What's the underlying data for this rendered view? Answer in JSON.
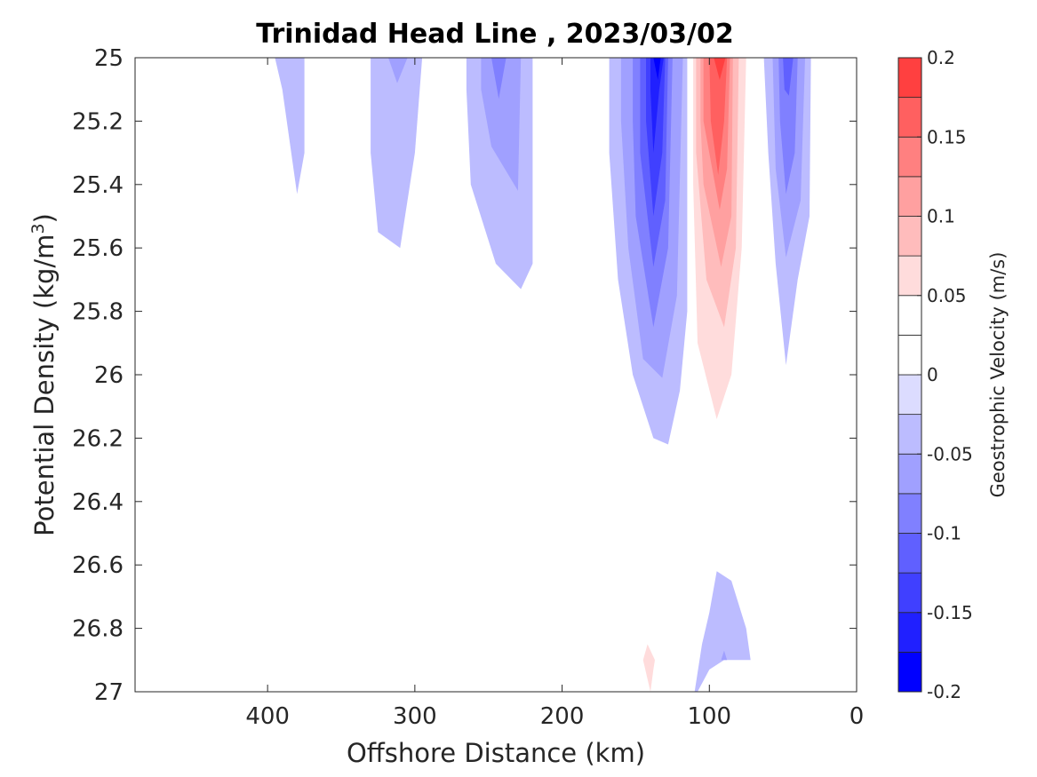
{
  "chart_data": {
    "type": "heatmap",
    "subtype": "filled-contour",
    "title": "Trinidad Head Line , 2023/03/02",
    "xlabel": "Offshore Distance (km)",
    "ylabel_main": "Potential Density (kg/m",
    "ylabel_sup": "3",
    "ylabel_tail": ")",
    "x_reversed": true,
    "y_reversed": true,
    "xlim": [
      0,
      490
    ],
    "ylim": [
      25,
      27
    ],
    "xticks": [
      400,
      300,
      200,
      100,
      0
    ],
    "xtick_labels": [
      "400",
      "300",
      "200",
      "100",
      "0"
    ],
    "yticks": [
      25,
      25.2,
      25.4,
      25.6,
      25.8,
      26,
      26.2,
      26.4,
      26.6,
      26.8,
      27
    ],
    "ytick_labels": [
      "25",
      "25.2",
      "25.4",
      "25.6",
      "25.8",
      "26",
      "26.2",
      "26.4",
      "26.6",
      "26.8",
      "27"
    ],
    "grid": false,
    "colorbar": {
      "label": "Geostrophic Velocity (m/s)",
      "clim": [
        -0.2,
        0.2
      ],
      "ticks": [
        -0.2,
        -0.15,
        -0.1,
        -0.05,
        0,
        0.05,
        0.1,
        0.15,
        0.2
      ],
      "tick_labels": [
        "-0.2",
        "-0.15",
        "-0.1",
        "-0.05",
        "0",
        "0.05",
        "0.1",
        "0.15",
        "0.2"
      ],
      "levels": [
        -0.2,
        -0.175,
        -0.15,
        -0.125,
        -0.1,
        -0.075,
        -0.05,
        -0.025,
        0,
        0.025,
        0.05,
        0.075,
        0.1,
        0.125,
        0.15,
        0.175,
        0.2
      ],
      "colors": [
        "#0000ff",
        "#2020ff",
        "#4040ff",
        "#6060ff",
        "#8080ff",
        "#a0a0ff",
        "#bcbcff",
        "#dcdcff",
        "#ffffff",
        "#ffffff",
        "#ffdcdc",
        "#ffbcbc",
        "#ffa0a0",
        "#ff8080",
        "#ff6060",
        "#ff4040",
        "#ff2020",
        "#ff0000"
      ]
    },
    "regions": [
      {
        "level": 0.025,
        "points": [
          [
            420,
            25
          ],
          [
            415,
            25
          ],
          [
            418,
            25.2
          ]
        ]
      },
      {
        "level": -0.025,
        "points": [
          [
            395,
            25
          ],
          [
            375,
            25
          ],
          [
            375,
            25.3
          ],
          [
            380,
            25.43
          ],
          [
            390,
            25.1
          ]
        ]
      },
      {
        "level": -0.025,
        "points": [
          [
            330,
            25
          ],
          [
            295,
            25
          ],
          [
            300,
            25.3
          ],
          [
            310,
            25.6
          ],
          [
            325,
            25.55
          ],
          [
            330,
            25.3
          ]
        ]
      },
      {
        "level": -0.05,
        "points": [
          [
            318,
            25
          ],
          [
            305,
            25
          ],
          [
            312,
            25.08
          ]
        ]
      },
      {
        "level": -0.025,
        "points": [
          [
            265,
            25
          ],
          [
            220,
            25
          ],
          [
            220,
            25.65
          ],
          [
            228,
            25.73
          ],
          [
            245,
            25.65
          ],
          [
            262,
            25.4
          ],
          [
            265,
            25.1
          ]
        ]
      },
      {
        "level": -0.05,
        "points": [
          [
            255,
            25
          ],
          [
            228,
            25
          ],
          [
            230,
            25.42
          ],
          [
            248,
            25.28
          ],
          [
            255,
            25.1
          ]
        ]
      },
      {
        "level": -0.075,
        "points": [
          [
            248,
            25
          ],
          [
            238,
            25
          ],
          [
            243,
            25.13
          ]
        ]
      },
      {
        "level": 0.025,
        "points": [
          [
            205,
            25
          ],
          [
            190,
            25
          ],
          [
            198,
            25.25
          ],
          [
            205,
            25.1
          ]
        ]
      },
      {
        "level": -0.025,
        "points": [
          [
            168,
            25
          ],
          [
            115,
            25
          ],
          [
            115,
            25.8
          ],
          [
            120,
            26.05
          ],
          [
            128,
            26.22
          ],
          [
            138,
            26.2
          ],
          [
            152,
            26.0
          ],
          [
            162,
            25.7
          ],
          [
            168,
            25.3
          ]
        ]
      },
      {
        "level": -0.05,
        "points": [
          [
            160,
            25
          ],
          [
            118,
            25
          ],
          [
            122,
            25.75
          ],
          [
            132,
            26.01
          ],
          [
            145,
            25.95
          ],
          [
            155,
            25.6
          ],
          [
            160,
            25.2
          ]
        ]
      },
      {
        "level": -0.075,
        "points": [
          [
            152,
            25
          ],
          [
            125,
            25
          ],
          [
            128,
            25.6
          ],
          [
            138,
            25.85
          ],
          [
            150,
            25.5
          ],
          [
            152,
            25.2
          ]
        ]
      },
      {
        "level": -0.1,
        "points": [
          [
            147,
            25
          ],
          [
            128,
            25
          ],
          [
            130,
            25.45
          ],
          [
            138,
            25.66
          ],
          [
            147,
            25.3
          ]
        ]
      },
      {
        "level": -0.125,
        "points": [
          [
            143,
            25
          ],
          [
            130,
            25
          ],
          [
            132,
            25.3
          ],
          [
            138,
            25.5
          ],
          [
            143,
            25.2
          ]
        ]
      },
      {
        "level": -0.15,
        "points": [
          [
            140,
            25
          ],
          [
            131,
            25
          ],
          [
            134,
            25.1
          ],
          [
            138,
            25.3
          ],
          [
            140,
            25.1
          ]
        ]
      },
      {
        "level": -0.175,
        "points": [
          [
            138,
            25
          ],
          [
            133,
            25
          ],
          [
            135,
            25.07
          ]
        ]
      },
      {
        "level": 0.025,
        "points": [
          [
            113,
            25
          ],
          [
            70,
            25
          ],
          [
            72,
            25.5
          ],
          [
            75,
            25.95
          ],
          [
            85,
            26.2
          ],
          [
            100,
            26.32
          ],
          [
            110,
            26.25
          ],
          [
            112,
            25.5
          ]
        ]
      },
      {
        "level": 0.05,
        "points": [
          [
            111,
            25
          ],
          [
            75,
            25
          ],
          [
            78,
            25.6
          ],
          [
            85,
            26.0
          ],
          [
            95,
            26.14
          ],
          [
            108,
            25.9
          ],
          [
            111,
            25.4
          ]
        ]
      },
      {
        "level": 0.075,
        "points": [
          [
            109,
            25
          ],
          [
            80,
            25
          ],
          [
            82,
            25.6
          ],
          [
            90,
            25.85
          ],
          [
            102,
            25.7
          ],
          [
            109,
            25.3
          ]
        ]
      },
      {
        "level": 0.1,
        "points": [
          [
            106,
            25
          ],
          [
            84,
            25
          ],
          [
            85,
            25.5
          ],
          [
            92,
            25.66
          ],
          [
            104,
            25.4
          ],
          [
            106,
            25.2
          ]
        ]
      },
      {
        "level": 0.125,
        "points": [
          [
            104,
            25
          ],
          [
            86,
            25
          ],
          [
            88,
            25.35
          ],
          [
            93,
            25.48
          ],
          [
            104,
            25.2
          ]
        ]
      },
      {
        "level": 0.15,
        "points": [
          [
            100,
            25
          ],
          [
            88,
            25
          ],
          [
            90,
            25.2
          ],
          [
            94,
            25.37
          ],
          [
            99,
            25.2
          ]
        ]
      },
      {
        "level": 0.175,
        "points": [
          [
            97,
            25
          ],
          [
            89,
            25
          ],
          [
            93,
            25.07
          ]
        ]
      },
      {
        "level": -0.025,
        "points": [
          [
            63,
            25
          ],
          [
            31,
            25
          ],
          [
            32,
            25.5
          ],
          [
            40,
            25.7
          ],
          [
            48,
            25.97
          ],
          [
            55,
            25.65
          ],
          [
            60,
            25.3
          ]
        ]
      },
      {
        "level": -0.05,
        "points": [
          [
            57,
            25
          ],
          [
            35,
            25
          ],
          [
            38,
            25.45
          ],
          [
            48,
            25.63
          ],
          [
            55,
            25.35
          ]
        ]
      },
      {
        "level": -0.075,
        "points": [
          [
            53,
            25
          ],
          [
            40,
            25
          ],
          [
            42,
            25.3
          ],
          [
            48,
            25.43
          ],
          [
            52,
            25.2
          ]
        ]
      },
      {
        "level": -0.1,
        "points": [
          [
            50,
            25
          ],
          [
            43,
            25
          ],
          [
            46,
            25.12
          ],
          [
            49,
            25.1
          ]
        ]
      },
      {
        "level": 0.025,
        "points": [
          [
            60,
            26.6
          ],
          [
            50,
            26.55
          ],
          [
            38,
            26.5
          ],
          [
            38,
            26.25
          ],
          [
            35,
            26.3
          ],
          [
            45,
            26.7
          ],
          [
            50,
            26.9
          ],
          [
            55,
            26.7
          ]
        ]
      },
      {
        "level": 0.025,
        "points": [
          [
            160,
            26.9
          ],
          [
            155,
            26.65
          ],
          [
            142,
            26.62
          ],
          [
            130,
            26.75
          ],
          [
            125,
            26.9
          ],
          [
            130,
            27.0
          ],
          [
            125,
            27.0
          ],
          [
            135,
            26.9
          ]
        ]
      },
      {
        "level": 0.05,
        "points": [
          [
            145,
            26.9
          ],
          [
            142,
            26.85
          ],
          [
            137,
            26.9
          ],
          [
            138,
            26.93
          ],
          [
            140,
            27.0
          ]
        ]
      },
      {
        "level": -0.025,
        "points": [
          [
            110,
            27.0
          ],
          [
            105,
            26.85
          ],
          [
            100,
            26.75
          ],
          [
            95,
            26.62
          ],
          [
            85,
            26.65
          ],
          [
            75,
            26.8
          ],
          [
            72,
            26.9
          ],
          [
            90,
            26.9
          ],
          [
            100,
            26.93
          ],
          [
            108,
            27.0
          ]
        ]
      },
      {
        "level": -0.05,
        "points": [
          [
            92,
            26.9
          ],
          [
            88,
            26.9
          ],
          [
            90,
            26.87
          ]
        ]
      },
      {
        "level": 0.025,
        "points": [
          [
            330,
            26.9
          ],
          [
            312,
            26.79
          ],
          [
            300,
            26.85
          ],
          [
            297,
            26.9
          ]
        ]
      },
      {
        "level": 0.025,
        "points": [
          [
            243,
            26.9
          ],
          [
            240,
            26.81
          ],
          [
            237,
            26.9
          ]
        ]
      }
    ]
  }
}
